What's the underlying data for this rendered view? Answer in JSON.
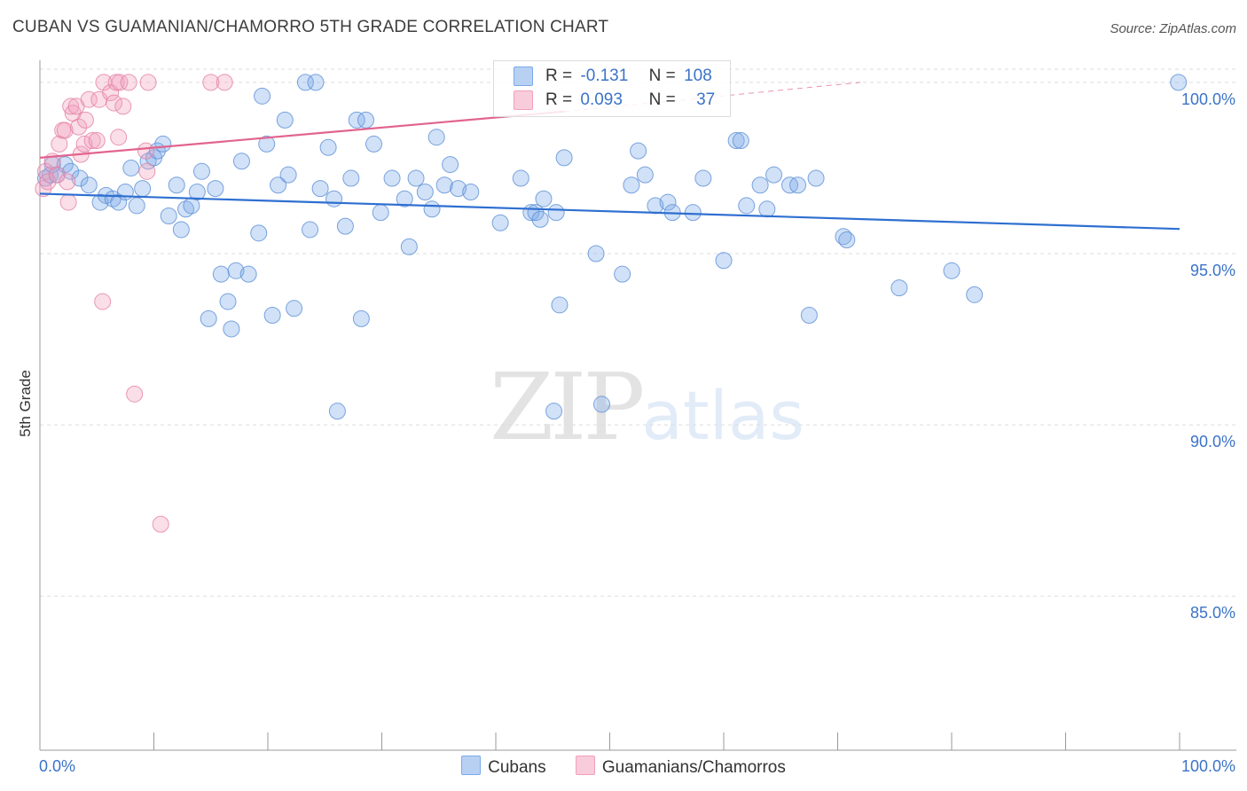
{
  "title": "CUBAN VS GUAMANIAN/CHAMORRO 5TH GRADE CORRELATION CHART",
  "source": "Source: ZipAtlas.com",
  "watermark": {
    "zip": "ZIP",
    "atlas": "atlas"
  },
  "legend": {
    "rows": [
      {
        "r_label": "R =",
        "r_value": "-0.131",
        "n_label": "N =",
        "n_value": "108",
        "color": "#7aa9e8"
      },
      {
        "r_label": "R =",
        "r_value": "0.093",
        "n_label": "N =",
        "n_value": "37",
        "color": "#f1a0bc"
      }
    ]
  },
  "bottom_legend": [
    {
      "label": "Cubans",
      "color": "#7aa9e8"
    },
    {
      "label": "Guamanians/Chamorros",
      "color": "#f1a0bc"
    }
  ],
  "chart_data": {
    "type": "scatter",
    "title": "CUBAN VS GUAMANIAN/CHAMORRO 5TH GRADE CORRELATION CHART",
    "xlabel": "",
    "ylabel": "5th Grade",
    "xlim": [
      0,
      100
    ],
    "ylim": [
      80.5,
      100.8
    ],
    "x_tick_labels": [
      "0.0%",
      "100.0%"
    ],
    "y_ticks": [
      {
        "value": 85,
        "label": "85.0%"
      },
      {
        "value": 90,
        "label": "90.0%"
      },
      {
        "value": 95,
        "label": "95.0%"
      },
      {
        "value": 100,
        "label": "100.0%"
      }
    ],
    "grid": "horizontal dashed",
    "series": [
      {
        "name": "Cubans",
        "color": "#7aa9e8",
        "stroke": "#5b8fd6",
        "trend": {
          "x": [
            0,
            100
          ],
          "y": [
            96.75,
            95.72
          ],
          "color": "#2e6fd0"
        },
        "points": [
          [
            0.5,
            97.2
          ],
          [
            0.9,
            97.3
          ],
          [
            1.1,
            97.6
          ],
          [
            1.5,
            97.3
          ],
          [
            2.2,
            97.6
          ],
          [
            2.7,
            97.4
          ],
          [
            3.5,
            97.2
          ],
          [
            4.3,
            97.0
          ],
          [
            5.3,
            96.5
          ],
          [
            5.8,
            96.7
          ],
          [
            6.4,
            96.6
          ],
          [
            6.9,
            96.5
          ],
          [
            7.5,
            96.8
          ],
          [
            8.0,
            97.5
          ],
          [
            8.5,
            96.4
          ],
          [
            9.0,
            96.9
          ],
          [
            9.5,
            97.7
          ],
          [
            10.0,
            97.8
          ],
          [
            10.3,
            98.0
          ],
          [
            10.8,
            98.2
          ],
          [
            11.3,
            96.1
          ],
          [
            12.0,
            97.0
          ],
          [
            12.4,
            95.7
          ],
          [
            12.8,
            96.3
          ],
          [
            13.3,
            96.4
          ],
          [
            13.8,
            96.8
          ],
          [
            14.2,
            97.4
          ],
          [
            14.8,
            93.1
          ],
          [
            15.4,
            96.9
          ],
          [
            15.9,
            94.4
          ],
          [
            16.5,
            93.6
          ],
          [
            16.8,
            92.8
          ],
          [
            17.2,
            94.5
          ],
          [
            17.7,
            97.7
          ],
          [
            18.3,
            94.4
          ],
          [
            19.2,
            95.6
          ],
          [
            19.5,
            99.6
          ],
          [
            19.9,
            98.2
          ],
          [
            20.4,
            93.2
          ],
          [
            20.9,
            97.0
          ],
          [
            21.5,
            98.9
          ],
          [
            21.8,
            97.3
          ],
          [
            22.3,
            93.4
          ],
          [
            23.3,
            100.0
          ],
          [
            23.7,
            95.7
          ],
          [
            24.2,
            100.0
          ],
          [
            24.6,
            96.9
          ],
          [
            25.3,
            98.1
          ],
          [
            25.8,
            96.6
          ],
          [
            26.1,
            90.4
          ],
          [
            26.8,
            95.8
          ],
          [
            27.3,
            97.2
          ],
          [
            27.8,
            98.9
          ],
          [
            28.2,
            93.1
          ],
          [
            28.6,
            98.9
          ],
          [
            29.3,
            98.2
          ],
          [
            29.9,
            96.2
          ],
          [
            30.9,
            97.2
          ],
          [
            32.0,
            96.6
          ],
          [
            32.4,
            95.2
          ],
          [
            33.0,
            97.2
          ],
          [
            33.8,
            96.8
          ],
          [
            34.4,
            96.3
          ],
          [
            34.8,
            98.4
          ],
          [
            35.5,
            97.0
          ],
          [
            36.0,
            97.6
          ],
          [
            36.7,
            96.9
          ],
          [
            37.8,
            96.8
          ],
          [
            40.4,
            95.9
          ],
          [
            42.2,
            97.2
          ],
          [
            43.1,
            96.2
          ],
          [
            43.5,
            96.2
          ],
          [
            43.9,
            96.0
          ],
          [
            44.2,
            96.6
          ],
          [
            45.1,
            90.4
          ],
          [
            45.3,
            96.2
          ],
          [
            45.6,
            93.5
          ],
          [
            46.0,
            97.8
          ],
          [
            48.8,
            95.0
          ],
          [
            49.3,
            90.6
          ],
          [
            51.1,
            94.4
          ],
          [
            51.9,
            97.0
          ],
          [
            52.5,
            98.0
          ],
          [
            53.1,
            97.3
          ],
          [
            54.0,
            96.4
          ],
          [
            55.1,
            96.5
          ],
          [
            55.5,
            96.2
          ],
          [
            57.3,
            96.2
          ],
          [
            58.2,
            97.2
          ],
          [
            60.0,
            94.8
          ],
          [
            61.1,
            98.3
          ],
          [
            61.5,
            98.3
          ],
          [
            62.0,
            96.4
          ],
          [
            63.2,
            97.0
          ],
          [
            63.8,
            96.3
          ],
          [
            64.4,
            97.3
          ],
          [
            65.8,
            97.0
          ],
          [
            66.5,
            97.0
          ],
          [
            67.5,
            93.2
          ],
          [
            68.1,
            97.2
          ],
          [
            70.5,
            95.5
          ],
          [
            70.8,
            95.4
          ],
          [
            75.4,
            94.0
          ],
          [
            80.0,
            94.5
          ],
          [
            82.0,
            93.8
          ],
          [
            99.9,
            100.0
          ]
        ]
      },
      {
        "name": "Guamanians/Chamorros",
        "color": "#f1a0bc",
        "stroke": "#e57fa3",
        "trend": {
          "x": [
            0,
            46
          ],
          "y": [
            97.8,
            99.15
          ],
          "color": "#e2648e",
          "dashed_to": {
            "x": [
              46,
              72
            ],
            "y": [
              99.15,
              100.0
            ]
          }
        },
        "points": [
          [
            0.3,
            96.9
          ],
          [
            0.5,
            97.4
          ],
          [
            0.7,
            97.1
          ],
          [
            1.1,
            97.7
          ],
          [
            1.5,
            97.3
          ],
          [
            1.7,
            98.2
          ],
          [
            2.0,
            98.6
          ],
          [
            2.2,
            98.6
          ],
          [
            2.4,
            97.1
          ],
          [
            2.5,
            96.5
          ],
          [
            2.7,
            99.3
          ],
          [
            2.9,
            99.1
          ],
          [
            3.2,
            99.3
          ],
          [
            3.4,
            98.7
          ],
          [
            3.6,
            97.9
          ],
          [
            3.9,
            98.2
          ],
          [
            4.0,
            98.9
          ],
          [
            4.3,
            99.5
          ],
          [
            4.6,
            98.3
          ],
          [
            5.0,
            98.3
          ],
          [
            5.2,
            99.5
          ],
          [
            5.5,
            93.6
          ],
          [
            5.6,
            100.0
          ],
          [
            6.2,
            99.7
          ],
          [
            6.5,
            99.4
          ],
          [
            6.7,
            100.0
          ],
          [
            6.9,
            98.4
          ],
          [
            7.0,
            100.0
          ],
          [
            7.3,
            99.3
          ],
          [
            7.8,
            100.0
          ],
          [
            8.3,
            90.9
          ],
          [
            9.3,
            98.0
          ],
          [
            9.4,
            97.4
          ],
          [
            9.5,
            100.0
          ],
          [
            10.6,
            87.1
          ],
          [
            15.0,
            100.0
          ],
          [
            16.2,
            100.0
          ]
        ]
      }
    ]
  }
}
